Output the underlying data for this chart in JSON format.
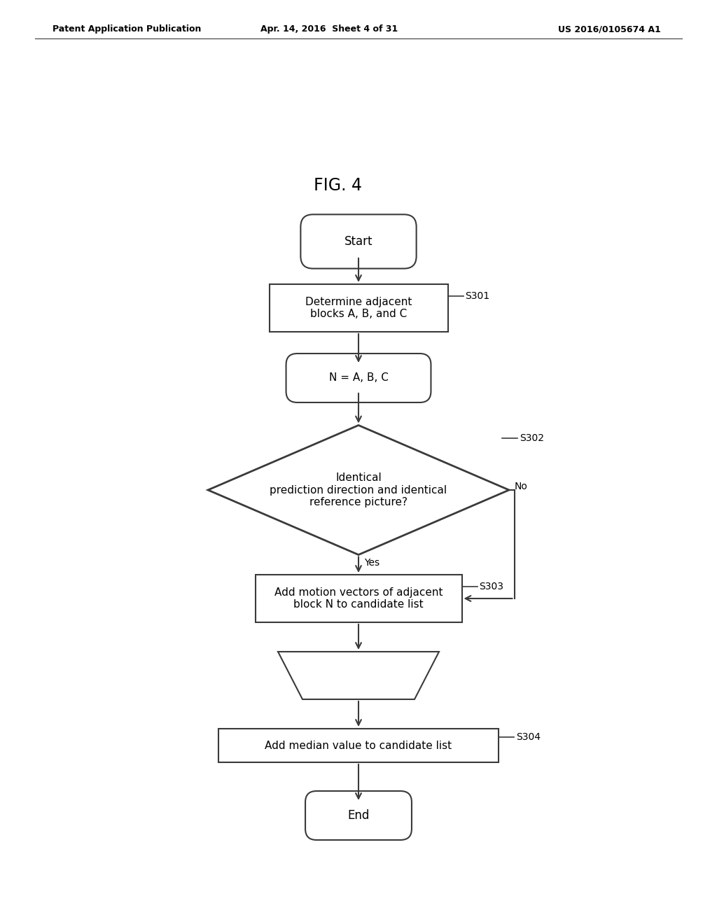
{
  "bg_color": "#ffffff",
  "header_left": "Patent Application Publication",
  "header_mid": "Apr. 14, 2016  Sheet 4 of 31",
  "header_right": "US 2016/0105674 A1",
  "fig_label": "FIG. 4",
  "font_family": "DejaVu Sans"
}
